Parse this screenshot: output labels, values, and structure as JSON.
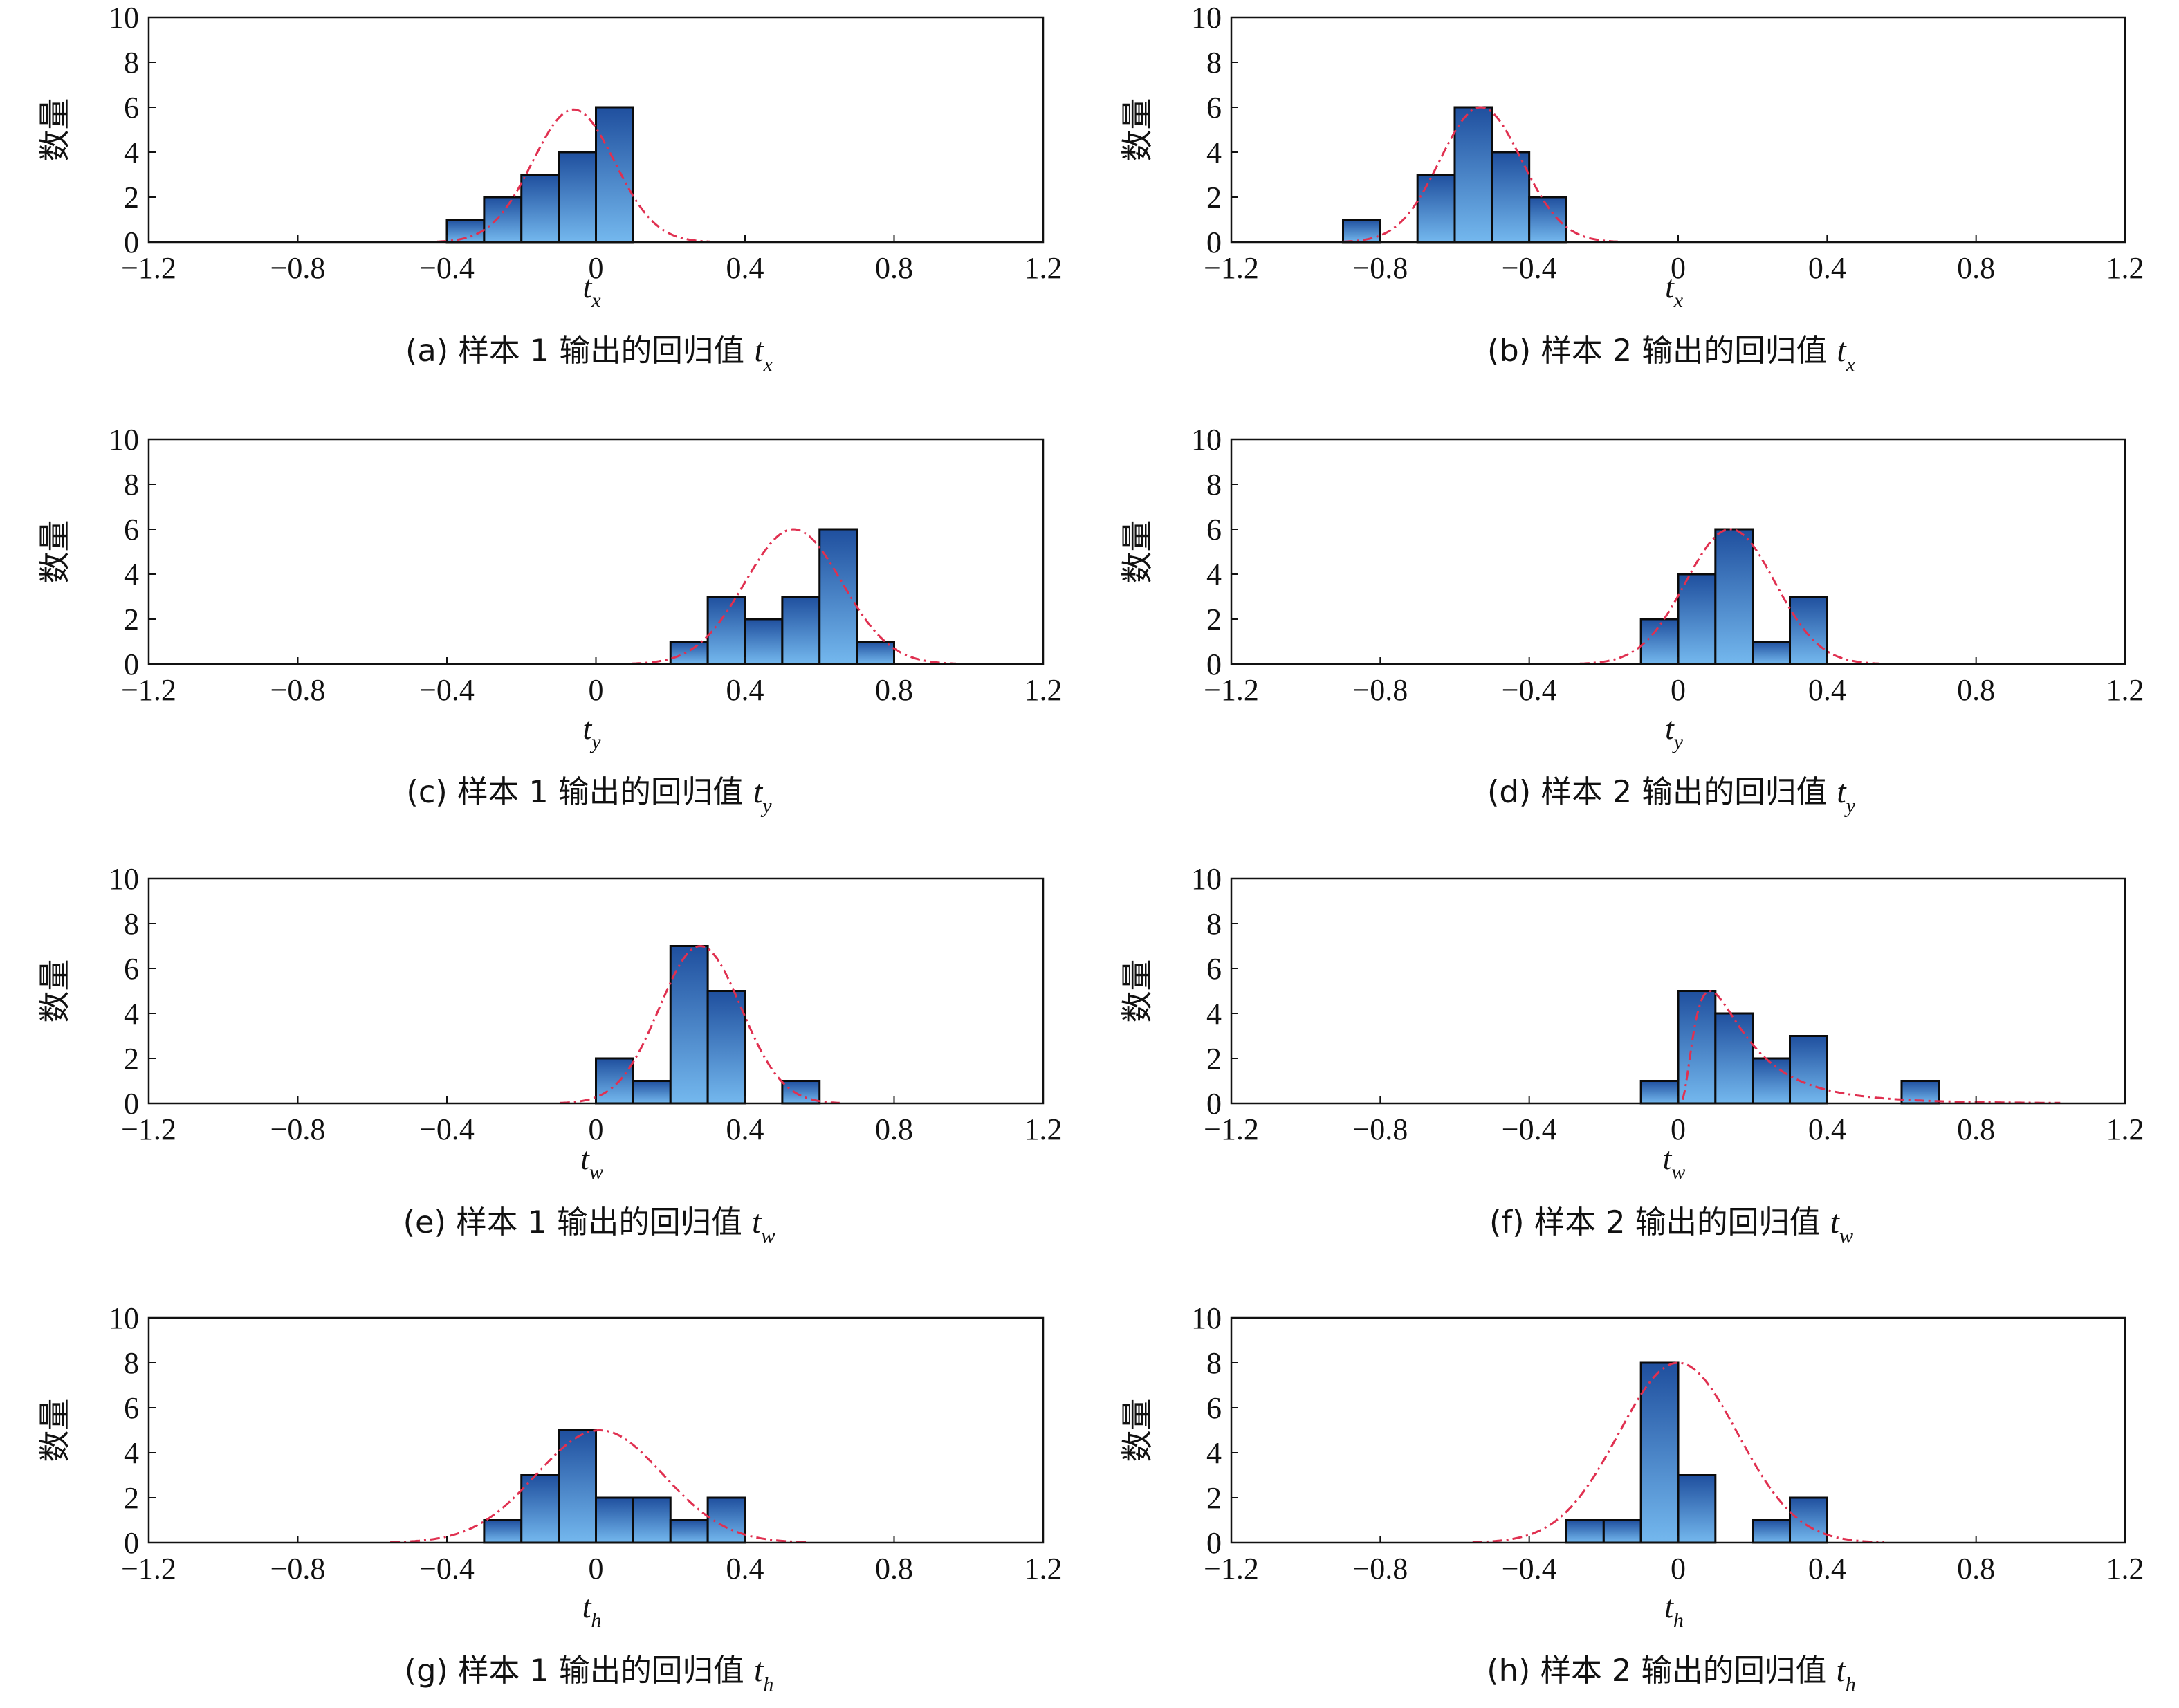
{
  "chart_data": [
    {
      "id": "a",
      "type": "bar",
      "caption": "(a) 样本 1 输出的回归值",
      "caption_var": "t",
      "caption_sub": "x",
      "xlabel_var": "t",
      "xlabel_sub": "x",
      "ylabel": "数量",
      "xlim": [
        -1.2,
        1.2
      ],
      "ylim": [
        0,
        10
      ],
      "xticks": [
        "−1.2",
        "−0.8",
        "−0.4",
        "0",
        "0.4",
        "0.8",
        "1.2"
      ],
      "yticks": [
        "0",
        "2",
        "4",
        "6",
        "8",
        "10"
      ],
      "bins": [
        [
          -0.4,
          -0.3,
          1
        ],
        [
          -0.3,
          -0.2,
          2
        ],
        [
          -0.2,
          -0.1,
          3
        ],
        [
          -0.1,
          0.0,
          4
        ],
        [
          0.0,
          0.1,
          6
        ]
      ],
      "fit": {
        "mean": -0.06,
        "sd": 0.11,
        "peak": 5.9
      }
    },
    {
      "id": "b",
      "type": "bar",
      "caption": "(b) 样本 2 输出的回归值",
      "caption_var": "t",
      "caption_sub": "x",
      "xlabel_var": "t",
      "xlabel_sub": "x",
      "ylabel": "数量",
      "xlim": [
        -1.2,
        1.2
      ],
      "ylim": [
        0,
        10
      ],
      "xticks": [
        "−1.2",
        "−0.8",
        "−0.4",
        "0",
        "0.4",
        "0.8",
        "1.2"
      ],
      "yticks": [
        "0",
        "2",
        "4",
        "6",
        "8",
        "10"
      ],
      "bins": [
        [
          -0.9,
          -0.8,
          1
        ],
        [
          -0.7,
          -0.6,
          3
        ],
        [
          -0.6,
          -0.5,
          6
        ],
        [
          -0.5,
          -0.4,
          4
        ],
        [
          -0.4,
          -0.3,
          2
        ]
      ],
      "fit": {
        "mean": -0.53,
        "sd": 0.11,
        "peak": 6.0
      }
    },
    {
      "id": "c",
      "type": "bar",
      "caption": "(c) 样本 1 输出的回归值",
      "caption_var": "t",
      "caption_sub": "y",
      "xlabel_var": "t",
      "xlabel_sub": "y",
      "ylabel": "数量",
      "xlim": [
        -1.2,
        1.2
      ],
      "ylim": [
        0,
        10
      ],
      "xticks": [
        "−1.2",
        "−0.8",
        "−0.4",
        "0",
        "0.4",
        "0.8",
        "1.2"
      ],
      "yticks": [
        "0",
        "2",
        "4",
        "6",
        "8",
        "10"
      ],
      "bins": [
        [
          0.2,
          0.3,
          1
        ],
        [
          0.3,
          0.4,
          3
        ],
        [
          0.4,
          0.5,
          2
        ],
        [
          0.5,
          0.6,
          3
        ],
        [
          0.6,
          0.7,
          6
        ],
        [
          0.7,
          0.8,
          1
        ]
      ],
      "fit": {
        "mean": 0.53,
        "sd": 0.13,
        "peak": 6.0
      }
    },
    {
      "id": "d",
      "type": "bar",
      "caption": "(d) 样本 2 输出的回归值",
      "caption_var": "t",
      "caption_sub": "y",
      "xlabel_var": "t",
      "xlabel_sub": "y",
      "ylabel": "数量",
      "xlim": [
        -1.2,
        1.2
      ],
      "ylim": [
        0,
        10
      ],
      "xticks": [
        "−1.2",
        "−0.8",
        "−0.4",
        "0",
        "0.4",
        "0.8",
        "1.2"
      ],
      "yticks": [
        "0",
        "2",
        "4",
        "6",
        "8",
        "10"
      ],
      "bins": [
        [
          -0.1,
          0.0,
          2
        ],
        [
          0.0,
          0.1,
          4
        ],
        [
          0.1,
          0.2,
          6
        ],
        [
          0.2,
          0.3,
          1
        ],
        [
          0.3,
          0.4,
          3
        ]
      ],
      "fit": {
        "mean": 0.14,
        "sd": 0.12,
        "peak": 6.0
      }
    },
    {
      "id": "e",
      "type": "bar",
      "caption": "(e) 样本 1 输出的回归值",
      "caption_var": "t",
      "caption_sub": "w",
      "xlabel_var": "t",
      "xlabel_sub": "w",
      "ylabel": "数量",
      "xlim": [
        -1.2,
        1.2
      ],
      "ylim": [
        0,
        10
      ],
      "xticks": [
        "−1.2",
        "−0.8",
        "−0.4",
        "0",
        "0.4",
        "0.8",
        "1.2"
      ],
      "yticks": [
        "0",
        "2",
        "4",
        "6",
        "8",
        "10"
      ],
      "bins": [
        [
          0.0,
          0.1,
          2
        ],
        [
          0.1,
          0.2,
          1
        ],
        [
          0.2,
          0.3,
          7
        ],
        [
          0.3,
          0.4,
          5
        ],
        [
          0.5,
          0.6,
          1
        ]
      ],
      "fit": {
        "mean": 0.28,
        "sd": 0.11,
        "peak": 7.0
      }
    },
    {
      "id": "f",
      "type": "bar",
      "caption": "(f) 样本 2 输出的回归值",
      "caption_var": "t",
      "caption_sub": "w",
      "xlabel_var": "t",
      "xlabel_sub": "w",
      "ylabel": "数量",
      "xlim": [
        -1.2,
        1.2
      ],
      "ylim": [
        0,
        10
      ],
      "xticks": [
        "−1.2",
        "−0.8",
        "−0.4",
        "0",
        "0.4",
        "0.8",
        "1.2"
      ],
      "yticks": [
        "0",
        "2",
        "4",
        "6",
        "8",
        "10"
      ],
      "bins": [
        [
          -0.1,
          0.0,
          1
        ],
        [
          0.0,
          0.1,
          5
        ],
        [
          0.1,
          0.2,
          4
        ],
        [
          0.2,
          0.3,
          2
        ],
        [
          0.3,
          0.4,
          3
        ],
        [
          0.6,
          0.7,
          1
        ]
      ],
      "fit": {
        "type": "lognormal",
        "shift": 0.0,
        "mu": -1.9,
        "sigma": 0.75,
        "peak": 5.0
      }
    },
    {
      "id": "g",
      "type": "bar",
      "caption": "(g) 样本 1 输出的回归值",
      "caption_var": "t",
      "caption_sub": "h",
      "xlabel_var": "t",
      "xlabel_sub": "h",
      "ylabel": "数量",
      "xlim": [
        -1.2,
        1.2
      ],
      "ylim": [
        0,
        10
      ],
      "xticks": [
        "−1.2",
        "−0.8",
        "−0.4",
        "0",
        "0.4",
        "0.8",
        "1.2"
      ],
      "yticks": [
        "0",
        "2",
        "4",
        "6",
        "8",
        "10"
      ],
      "bins": [
        [
          -0.3,
          -0.2,
          1
        ],
        [
          -0.2,
          -0.1,
          3
        ],
        [
          -0.1,
          0.0,
          5
        ],
        [
          0.0,
          0.1,
          2
        ],
        [
          0.1,
          0.2,
          2
        ],
        [
          0.2,
          0.3,
          1
        ],
        [
          0.3,
          0.4,
          2
        ]
      ],
      "fit": {
        "mean": 0.01,
        "sd": 0.17,
        "peak": 5.0
      }
    },
    {
      "id": "h",
      "type": "bar",
      "caption": "(h) 样本 2 输出的回归值",
      "caption_var": "t",
      "caption_sub": "h",
      "xlabel_var": "t",
      "xlabel_sub": "h",
      "ylabel": "数量",
      "xlim": [
        -1.2,
        1.2
      ],
      "ylim": [
        0,
        10
      ],
      "xticks": [
        "−1.2",
        "−0.8",
        "−0.4",
        "0",
        "0.4",
        "0.8",
        "1.2"
      ],
      "yticks": [
        "0",
        "2",
        "4",
        "6",
        "8",
        "10"
      ],
      "bins": [
        [
          -0.3,
          -0.2,
          1
        ],
        [
          -0.2,
          -0.1,
          1
        ],
        [
          -0.1,
          0.0,
          8
        ],
        [
          0.0,
          0.1,
          3
        ],
        [
          0.2,
          0.3,
          1
        ],
        [
          0.3,
          0.4,
          2
        ]
      ],
      "fit": {
        "mean": 0.0,
        "sd": 0.16,
        "peak": 8.0
      }
    }
  ],
  "colors": {
    "bar_top": "#1f4f9e",
    "bar_bottom": "#74b8ee",
    "fit_curve": "#e03050",
    "axis": "#111111"
  }
}
